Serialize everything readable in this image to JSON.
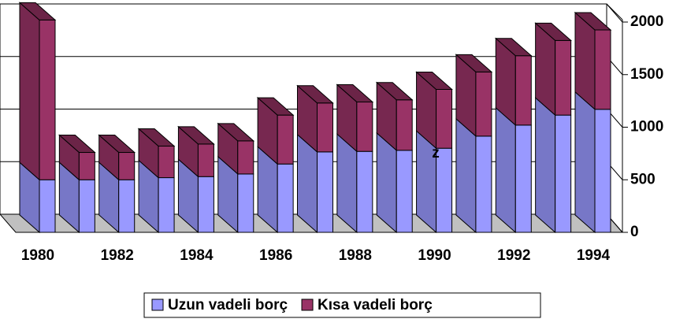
{
  "chart_data": {
    "type": "bar3d_stacked",
    "categories": [
      "1980",
      null,
      "1982",
      null,
      "1984",
      null,
      "1986",
      null,
      "1988",
      null,
      "1990",
      null,
      "1992",
      null,
      "1994"
    ],
    "series": [
      {
        "name": "Uzun vadeli borç",
        "color": "#9999ff",
        "values": [
          500,
          500,
          500,
          520,
          530,
          555,
          650,
          765,
          770,
          780,
          800,
          915,
          1020,
          1115,
          1170
        ]
      },
      {
        "name": "Kısa vadeli borç",
        "color": "#993366",
        "values": [
          1520,
          260,
          260,
          300,
          310,
          315,
          465,
          465,
          470,
          480,
          560,
          610,
          660,
          710,
          755
        ]
      }
    ],
    "ylim": [
      0,
      2000
    ],
    "yticks": [
      0,
      500,
      1000,
      1500,
      2000
    ],
    "grid": true,
    "annotations": [
      "z"
    ],
    "legend": "bottom"
  }
}
